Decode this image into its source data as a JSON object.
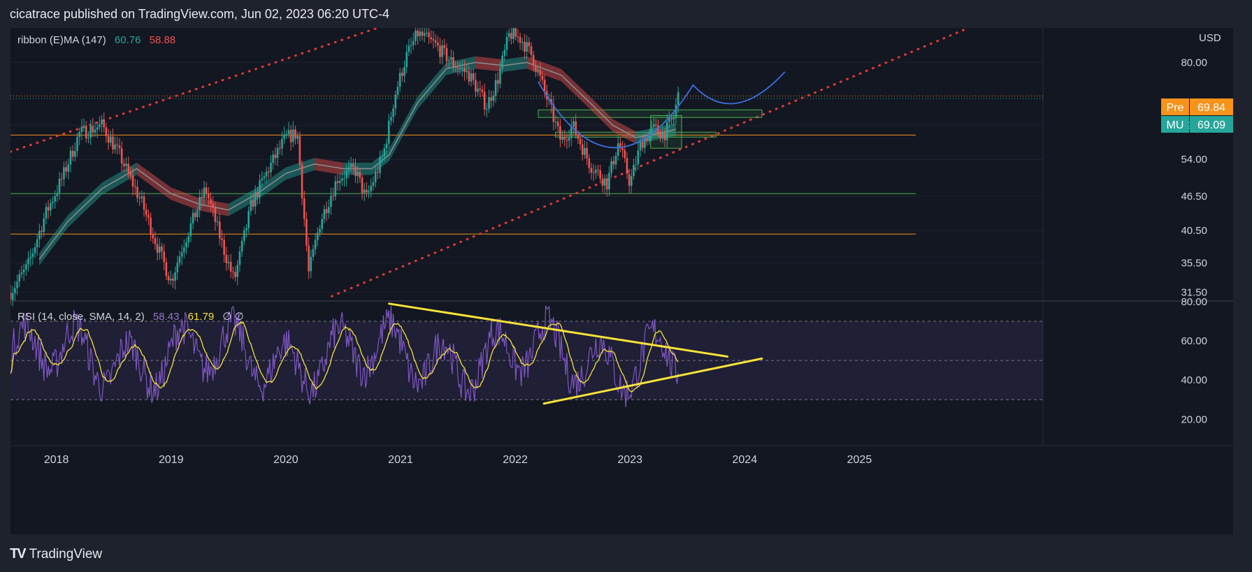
{
  "header": {
    "publisher": "cicatrace published on TradingView.com, Jun 02, 2023 06:20 UTC-4"
  },
  "footer": {
    "brand": "TradingView"
  },
  "chart_data": [
    {
      "type": "candlestick",
      "legend": {
        "name": "ribbon (E)MA (147)",
        "v1": "60.76",
        "v2": "58.88",
        "v1_color": "#26a69a",
        "v2_color": "#ef5350"
      },
      "currency": "USD",
      "y_axis": {
        "ticks": [
          "80.00",
          "62.00",
          "54.00",
          "46.50",
          "40.50",
          "35.50",
          "31.50"
        ],
        "scale": "log",
        "ylim": [
          30.5,
          92
        ]
      },
      "x_axis": {
        "ticks": [
          "2018",
          "2019",
          "2020",
          "2021",
          "2022",
          "2023",
          "2024",
          "2025"
        ],
        "xlim": [
          2017.6,
          2026.6
        ]
      },
      "price_labels": [
        {
          "name": "Pre",
          "value": "69.84",
          "color": "#f7931a"
        },
        {
          "name": "MU",
          "value": "69.09",
          "color": "#26a69a"
        }
      ],
      "horizontal_levels": [
        {
          "value": 59.6,
          "color": "#f7931a"
        },
        {
          "value": 47.0,
          "color": "#4caf50"
        },
        {
          "value": 39.9,
          "color": "#f7931a"
        }
      ],
      "trendlines": [
        {
          "kind": "dotted",
          "color": "#e53935",
          "points": [
            [
              2017.6,
              55.7
            ],
            [
              2020.8,
              92
            ]
          ]
        },
        {
          "kind": "dotted",
          "color": "#e53935",
          "points": [
            [
              2020.4,
              31.0
            ],
            [
              2025.95,
              92
            ]
          ]
        }
      ],
      "cup_and_handle": {
        "color": "#3d6fe0",
        "cup": [
          [
            2022.2,
            74
          ],
          [
            2022.85,
            47.5
          ],
          [
            2023.55,
            73
          ]
        ],
        "handle": [
          [
            2023.55,
            73
          ],
          [
            2023.9,
            64.5
          ],
          [
            2024.35,
            77
          ]
        ]
      },
      "zones": [
        {
          "x": [
            2022.2,
            2024.15
          ],
          "y": [
            64.0,
            66.0
          ]
        },
        {
          "x": [
            2022.35,
            2023.75
          ],
          "y": [
            59.1,
            60.3
          ]
        },
        {
          "x": [
            2023.18,
            2023.45
          ],
          "y": [
            56.5,
            64.5
          ]
        }
      ],
      "price_path": [
        [
          2017.6,
          31.5
        ],
        [
          2017.75,
          35
        ],
        [
          2017.9,
          43
        ],
        [
          2018.05,
          50
        ],
        [
          2018.2,
          60
        ],
        [
          2018.4,
          62
        ],
        [
          2018.55,
          55
        ],
        [
          2018.75,
          45
        ],
        [
          2018.9,
          37
        ],
        [
          2019.0,
          33
        ],
        [
          2019.1,
          38
        ],
        [
          2019.3,
          48
        ],
        [
          2019.45,
          38
        ],
        [
          2019.55,
          33
        ],
        [
          2019.7,
          45
        ],
        [
          2019.85,
          52
        ],
        [
          2020.0,
          59
        ],
        [
          2020.1,
          60
        ],
        [
          2020.2,
          34
        ],
        [
          2020.3,
          42
        ],
        [
          2020.45,
          50
        ],
        [
          2020.6,
          52
        ],
        [
          2020.7,
          46
        ],
        [
          2020.85,
          55
        ],
        [
          2020.95,
          70
        ],
        [
          2021.05,
          82
        ],
        [
          2021.15,
          90
        ],
        [
          2021.3,
          86
        ],
        [
          2021.45,
          80
        ],
        [
          2021.6,
          76
        ],
        [
          2021.75,
          67
        ],
        [
          2021.85,
          75
        ],
        [
          2021.95,
          90
        ],
        [
          2022.05,
          88
        ],
        [
          2022.15,
          82
        ],
        [
          2022.3,
          67
        ],
        [
          2022.4,
          58
        ],
        [
          2022.5,
          62
        ],
        [
          2022.65,
          53
        ],
        [
          2022.8,
          49
        ],
        [
          2022.9,
          58
        ],
        [
          2023.0,
          49
        ],
        [
          2023.1,
          58
        ],
        [
          2023.2,
          61
        ],
        [
          2023.3,
          60
        ],
        [
          2023.38,
          64
        ],
        [
          2023.42,
          70
        ]
      ],
      "ribbon_path": [
        [
          2017.85,
          36
        ],
        [
          2018.1,
          42
        ],
        [
          2018.4,
          48
        ],
        [
          2018.7,
          52
        ],
        [
          2019.0,
          47
        ],
        [
          2019.25,
          45
        ],
        [
          2019.5,
          44
        ],
        [
          2019.75,
          47
        ],
        [
          2020.0,
          51
        ],
        [
          2020.25,
          53
        ],
        [
          2020.5,
          52
        ],
        [
          2020.75,
          52
        ],
        [
          2020.9,
          55
        ],
        [
          2021.15,
          68
        ],
        [
          2021.4,
          78
        ],
        [
          2021.65,
          80
        ],
        [
          2021.9,
          79
        ],
        [
          2022.1,
          80
        ],
        [
          2022.4,
          76
        ],
        [
          2022.65,
          68
        ],
        [
          2022.85,
          62
        ],
        [
          2023.05,
          59
        ],
        [
          2023.25,
          60
        ],
        [
          2023.4,
          61
        ]
      ]
    },
    {
      "type": "line",
      "legend": {
        "name": "RSI (14, close, SMA, 14, 2)",
        "rsi": "58.43",
        "sma": "61.79",
        "extra": "∅ ∅",
        "rsi_color": "#7e57c2",
        "sma_color": "#f7e23a"
      },
      "y_axis": {
        "ticks": [
          "80.00",
          "60.00",
          "40.00",
          "20.00"
        ],
        "ylim": [
          8,
          80
        ],
        "bands": [
          70,
          50,
          30
        ]
      },
      "x_axis": {
        "xlim": [
          2017.6,
          2026.6
        ]
      },
      "triangle_lines": [
        {
          "color": "#f7e23a",
          "points": [
            [
              2020.9,
              79
            ],
            [
              2023.85,
              52
            ]
          ]
        },
        {
          "color": "#f7e23a",
          "points": [
            [
              2022.25,
              28
            ],
            [
              2024.15,
              51
            ]
          ]
        }
      ]
    }
  ]
}
